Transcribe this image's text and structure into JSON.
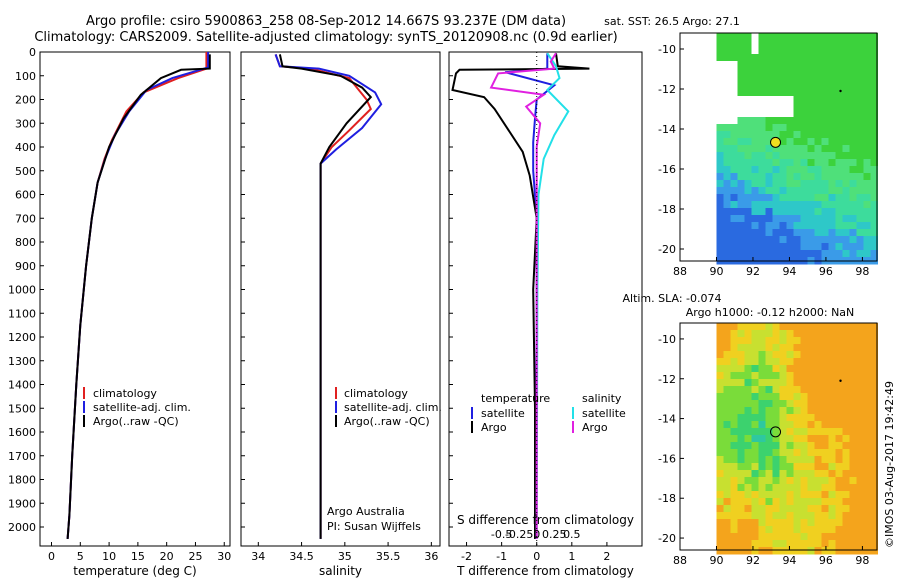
{
  "header": {
    "title_line1": "Argo profile: csiro 5900863_258 08-Sep-2012 14.667S 93.237E (DM data)",
    "title_line2": "Climatology: CARS2009. Satellite-adjusted climatology: synTS_20120908.nc (0.9d earlier)"
  },
  "colors": {
    "climatology": "#e02020",
    "satellite": "#1f1fe0",
    "argo": "#000000",
    "sat_salinity": "#22e0e8",
    "argo_salinity": "#e020e0"
  },
  "chart_data": [
    {
      "type": "line",
      "name": "temperature",
      "xlabel": "temperature (deg C)",
      "xlim": [
        -2,
        31
      ],
      "xticks": [
        0,
        5,
        10,
        15,
        20,
        25,
        30
      ],
      "ylim": [
        2080,
        0
      ],
      "yticks": [
        0,
        100,
        200,
        300,
        400,
        500,
        600,
        700,
        800,
        900,
        1000,
        1100,
        1200,
        1300,
        1400,
        1500,
        1600,
        1700,
        1800,
        1900,
        2000
      ],
      "legend": [
        "climatology",
        "satellite-adj. clim.",
        "Argo(..raw -QC)"
      ],
      "series": [
        {
          "name": "climatology",
          "color": "#e02020",
          "points": [
            [
              26.9,
              0
            ],
            [
              26.9,
              70
            ],
            [
              22,
              110
            ],
            [
              16,
              170
            ],
            [
              13,
              250
            ],
            [
              10.5,
              370
            ],
            [
              9.2,
              450
            ],
            [
              8,
              550
            ],
            [
              7,
              700
            ],
            [
              6,
              900
            ],
            [
              5,
              1150
            ],
            [
              4.3,
              1400
            ],
            [
              3.6,
              1700
            ],
            [
              3.1,
              1950
            ],
            [
              2.8,
              2050
            ]
          ]
        },
        {
          "name": "satellite-adj. clim.",
          "color": "#1f1fe0",
          "points": [
            [
              27.2,
              0
            ],
            [
              27.2,
              65
            ],
            [
              21,
              110
            ],
            [
              16.5,
              160
            ],
            [
              13.5,
              250
            ],
            [
              11,
              350
            ],
            [
              9.3,
              450
            ],
            [
              8,
              550
            ],
            [
              7,
              700
            ],
            [
              6,
              900
            ],
            [
              5,
              1150
            ],
            [
              4.3,
              1400
            ],
            [
              3.6,
              1700
            ],
            [
              3.1,
              1950
            ],
            [
              2.8,
              2050
            ]
          ]
        },
        {
          "name": "Argo(..raw -QC)",
          "color": "#000000",
          "points": [
            [
              27.5,
              10
            ],
            [
              27.5,
              70
            ],
            [
              22.5,
              75
            ],
            [
              19,
              110
            ],
            [
              15.5,
              180
            ],
            [
              12.5,
              280
            ],
            [
              10,
              400
            ],
            [
              8,
              550
            ],
            [
              7,
              700
            ],
            [
              6,
              900
            ],
            [
              5,
              1150
            ],
            [
              4.3,
              1400
            ],
            [
              3.6,
              1700
            ],
            [
              3.1,
              1950
            ],
            [
              2.8,
              2050
            ]
          ]
        }
      ]
    },
    {
      "type": "line",
      "name": "salinity",
      "xlabel": "salinity",
      "xlim": [
        33.8,
        36.1
      ],
      "xticks": [
        34,
        34.5,
        35,
        35.5,
        36
      ],
      "ylim": [
        2080,
        0
      ],
      "legend": [
        "climatology",
        "satellite-adj. clim.",
        "Argo(..raw -QC)"
      ],
      "annotation_lines": [
        "Argo Australia",
        "PI: Susan Wijffels"
      ],
      "series": [
        {
          "name": "climatology",
          "color": "#e02020",
          "points": [
            [
              34.2,
              10
            ],
            [
              34.25,
              60
            ],
            [
              34.6,
              70
            ],
            [
              35.05,
              110
            ],
            [
              35.25,
              200
            ],
            [
              35.3,
              240
            ],
            [
              35.05,
              330
            ],
            [
              34.85,
              400
            ],
            [
              34.72,
              470
            ],
            [
              34.72,
              600
            ],
            [
              34.72,
              1000
            ],
            [
              34.72,
              1500
            ],
            [
              34.72,
              2050
            ]
          ]
        },
        {
          "name": "satellite-adj. clim.",
          "color": "#1f1fe0",
          "points": [
            [
              34.2,
              10
            ],
            [
              34.25,
              60
            ],
            [
              34.7,
              70
            ],
            [
              35.05,
              100
            ],
            [
              35.35,
              170
            ],
            [
              35.42,
              220
            ],
            [
              35.2,
              320
            ],
            [
              34.9,
              410
            ],
            [
              34.72,
              470
            ],
            [
              34.72,
              600
            ],
            [
              34.72,
              1000
            ],
            [
              34.72,
              1500
            ],
            [
              34.72,
              2050
            ]
          ]
        },
        {
          "name": "Argo(..raw -QC)",
          "color": "#000000",
          "points": [
            [
              34.25,
              10
            ],
            [
              34.28,
              60
            ],
            [
              34.5,
              70
            ],
            [
              34.95,
              100
            ],
            [
              35.2,
              150
            ],
            [
              35.3,
              190
            ],
            [
              35.02,
              300
            ],
            [
              34.82,
              400
            ],
            [
              34.72,
              470
            ],
            [
              34.72,
              600
            ],
            [
              34.72,
              1000
            ],
            [
              34.72,
              1500
            ],
            [
              34.72,
              2050
            ]
          ]
        }
      ]
    },
    {
      "type": "line",
      "name": "difference-from-climatology",
      "xlabel": "T difference from climatology",
      "xlabel_top": "S difference from climatology",
      "xlim": [
        -2.5,
        3
      ],
      "xticks": [
        -2,
        -1,
        0,
        1,
        2
      ],
      "sticks": [
        -0.5,
        -0.25,
        0,
        0.25,
        0.5
      ],
      "legend_headers": [
        "temperature",
        "salinity"
      ],
      "legend": [
        "satellite",
        "Argo",
        "satellite",
        "Argo"
      ],
      "series": [
        {
          "name": "temperature satellite",
          "color": "#1f1fe0",
          "points": [
            [
              0.3,
              5
            ],
            [
              0.3,
              70
            ],
            [
              -0.9,
              85
            ],
            [
              0.5,
              140
            ],
            [
              0,
              200
            ],
            [
              -0.05,
              280
            ],
            [
              -0.1,
              380
            ],
            [
              -0.1,
              500
            ],
            [
              0,
              700
            ],
            [
              0,
              1200
            ],
            [
              -0.05,
              1800
            ],
            [
              -0.05,
              2050
            ]
          ]
        },
        {
          "name": "temperature Argo",
          "color": "#000000",
          "points": [
            [
              0.55,
              5
            ],
            [
              0.6,
              60
            ],
            [
              1.5,
              70
            ],
            [
              -2.2,
              75
            ],
            [
              -2.3,
              90
            ],
            [
              -2.4,
              160
            ],
            [
              -1.5,
              190
            ],
            [
              -1.2,
              240
            ],
            [
              -0.8,
              330
            ],
            [
              -0.4,
              420
            ],
            [
              -0.2,
              520
            ],
            [
              0,
              700
            ],
            [
              -0.1,
              1000
            ],
            [
              -0.05,
              1500
            ],
            [
              -0.05,
              2050
            ]
          ]
        },
        {
          "name": "salinity satellite",
          "color": "#22e0e8",
          "points": [
            [
              0.3,
              5
            ],
            [
              0.55,
              60
            ],
            [
              0.65,
              110
            ],
            [
              0.3,
              160
            ],
            [
              0.9,
              250
            ],
            [
              0.5,
              350
            ],
            [
              0.2,
              450
            ],
            [
              0.05,
              600
            ],
            [
              0.02,
              1000
            ],
            [
              0,
              2050
            ]
          ]
        },
        {
          "name": "salinity Argo",
          "color": "#e020e0",
          "points": [
            [
              0.55,
              5
            ],
            [
              0.4,
              40
            ],
            [
              0.5,
              70
            ],
            [
              -1.1,
              90
            ],
            [
              -1.3,
              150
            ],
            [
              0.2,
              180
            ],
            [
              -0.3,
              230
            ],
            [
              0.1,
              300
            ],
            [
              0,
              400
            ],
            [
              0,
              600
            ],
            [
              0,
              1000
            ],
            [
              0,
              2050
            ]
          ]
        }
      ]
    },
    {
      "type": "heatmap",
      "name": "sst-map",
      "title": "sat. SST: 26.5 Argo: 27.1",
      "xlim": [
        88,
        98.8
      ],
      "ylim": [
        -20.6,
        -9.2
      ],
      "xticks": [
        88,
        90,
        92,
        94,
        96,
        98
      ],
      "yticks": [
        -10,
        -12,
        -14,
        -16,
        -18,
        -20
      ],
      "float_position": [
        93.237,
        -14.667
      ]
    },
    {
      "type": "heatmap",
      "name": "sla-map",
      "title": "Altim. SLA: -0.074",
      "subtitle": "Argo h1000: -0.12 h2000: NaN",
      "xlim": [
        88,
        98.8
      ],
      "ylim": [
        -20.6,
        -9.2
      ],
      "xticks": [
        88,
        90,
        92,
        94,
        96,
        98
      ],
      "yticks": [
        -10,
        -12,
        -14,
        -16,
        -18,
        -20
      ],
      "float_position": [
        93.237,
        -14.667
      ]
    }
  ],
  "footer": {
    "watermark": "©IMOS 03-Aug-2017 19:42:49"
  }
}
